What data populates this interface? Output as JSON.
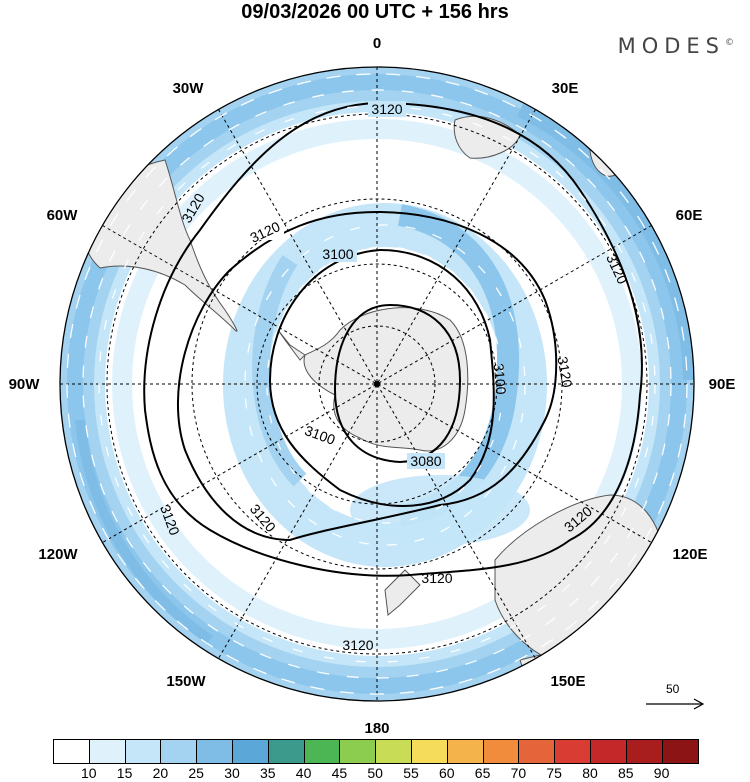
{
  "title": "09/03/2026  00 UTC  + 156 hrs",
  "brand": "MODES",
  "brand_mark": "©",
  "longitude_labels": {
    "lon_0": "0",
    "lon_30e": "30E",
    "lon_60e": "60E",
    "lon_90e": "90E",
    "lon_120e": "120E",
    "lon_150e": "150E",
    "lon_180": "180",
    "lon_150w": "150W",
    "lon_120w": "120W",
    "lon_90w": "90W",
    "lon_60w": "60W",
    "lon_30w": "30W"
  },
  "contour_labels": {
    "c3080": "3080",
    "c3100": "3100",
    "c3120": "3120"
  },
  "reference_vector": {
    "value": "50"
  },
  "colorbar": {
    "labels": [
      "10",
      "15",
      "20",
      "25",
      "30",
      "35",
      "40",
      "45",
      "50",
      "55",
      "60",
      "65",
      "70",
      "75",
      "80",
      "85",
      "90"
    ],
    "colors": [
      "#ffffff",
      "#dff2fc",
      "#c4e6f8",
      "#a3d3f0",
      "#7fbde6",
      "#5aa7d8",
      "#3c9a8c",
      "#4cb655",
      "#8ccd50",
      "#c8dc55",
      "#f5dc5a",
      "#f5b44b",
      "#f08c3c",
      "#e6643a",
      "#d83c32",
      "#c42828",
      "#a81e1e",
      "#8c1414"
    ]
  },
  "colors": {
    "land": "#ececec",
    "coast": "#555555"
  }
}
